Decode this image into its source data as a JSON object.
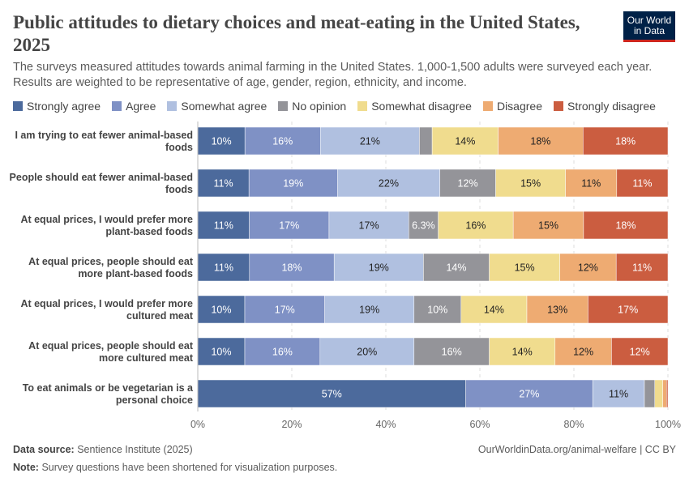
{
  "header": {
    "title": "Public attitudes to dietary choices and meat-eating in the United States, 2025",
    "subtitle": "The surveys measured attitudes towards animal farming in the United States. 1,000-1,500 adults were surveyed each year. Results are weighted to be representative of age, gender, region, ethnicity, and income.",
    "logo": "Our World in Data"
  },
  "chart_data": {
    "type": "bar",
    "orientation": "horizontal",
    "stacked": true,
    "xlim": [
      0,
      100
    ],
    "xticks": [
      "0%",
      "20%",
      "40%",
      "60%",
      "80%",
      "100%"
    ],
    "grid": "vertical dashed",
    "legend_placement": "top",
    "categories": [
      "I am trying to eat fewer animal-based foods",
      "People should eat fewer animal-based foods",
      "At equal prices, I would prefer more plant-based foods",
      "At equal prices, people should eat more plant-based foods",
      "At equal prices, I would prefer more cultured meat",
      "At equal prices, people should eat more cultured meat",
      "To eat animals or be vegetarian is a personal choice"
    ],
    "series": [
      {
        "name": "Strongly agree",
        "color": "#4c6a9c",
        "values": [
          10,
          11,
          11,
          11,
          10,
          10,
          57
        ]
      },
      {
        "name": "Agree",
        "color": "#7f91c5",
        "values": [
          16,
          19,
          17,
          18,
          17,
          16,
          27
        ]
      },
      {
        "name": "Somewhat agree",
        "color": "#b0c0e0",
        "values": [
          21,
          22,
          17,
          19,
          19,
          20,
          11
        ]
      },
      {
        "name": "No opinion",
        "color": "#949499",
        "values": [
          2.7,
          12,
          6.3,
          14,
          10,
          16,
          2.2
        ]
      },
      {
        "name": "Somewhat disagree",
        "color": "#f0dc8e",
        "values": [
          14,
          15,
          16,
          15,
          14,
          14,
          1.7
        ]
      },
      {
        "name": "Disagree",
        "color": "#eeab72",
        "values": [
          18,
          11,
          15,
          12,
          13,
          12,
          0.8
        ]
      },
      {
        "name": "Strongly disagree",
        "color": "#cb5d40",
        "values": [
          18,
          11,
          18,
          11,
          17,
          12,
          0.3
        ]
      }
    ]
  },
  "footer": {
    "source_label": "Data source:",
    "source": "Sentience Institute (2025)",
    "url": "OurWorldinData.org/animal-welfare | CC BY",
    "note_label": "Note:",
    "note": "Survey questions have been shortened for visualization purposes."
  }
}
